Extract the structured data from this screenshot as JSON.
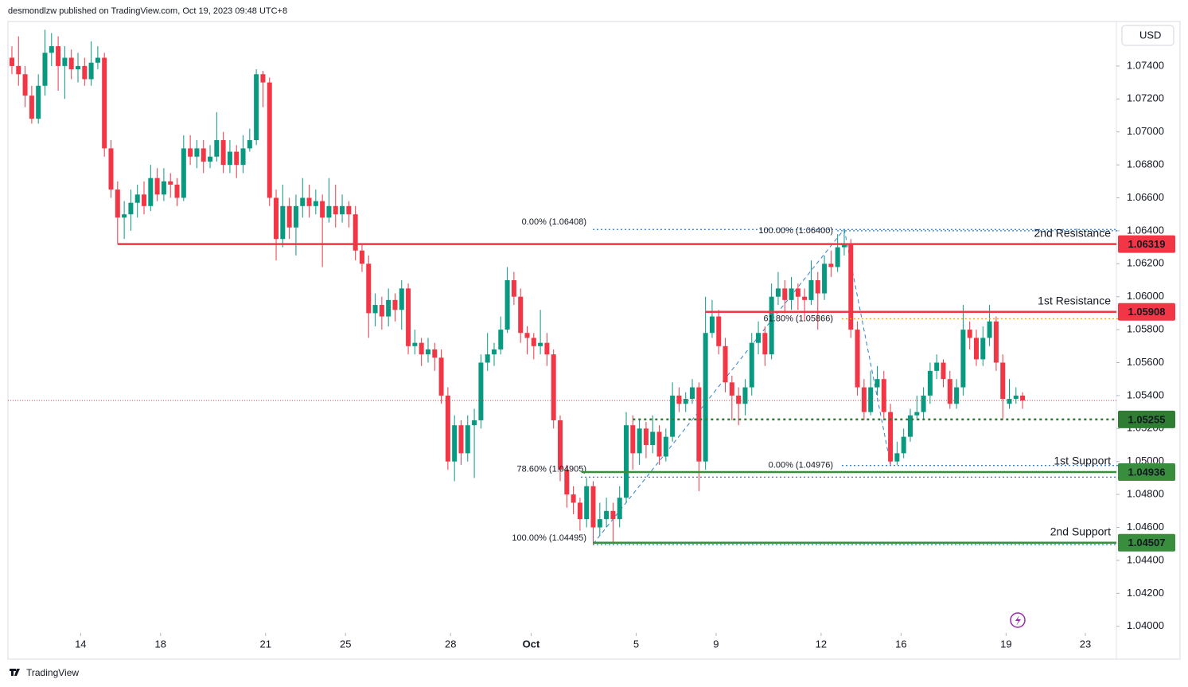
{
  "header": "desmondlzw published on TradingView.com, Oct 19, 2023 09:48 UTC+8",
  "currency_button": "USD",
  "footer": "TradingView",
  "chart_data": {
    "type": "candlestick",
    "up_color": "#089981",
    "down_color": "#f23645",
    "xlim": [
      -0.6,
      167.2
    ],
    "xticks": [
      {
        "value": 10.4,
        "label": "14"
      },
      {
        "value": 22.5,
        "label": "18"
      },
      {
        "value": 38.4,
        "label": "21"
      },
      {
        "value": 50.5,
        "label": "25"
      },
      {
        "value": 66.4,
        "label": "28"
      },
      {
        "value": 78.6,
        "label": "Oct"
      },
      {
        "value": 94.5,
        "label": "5"
      },
      {
        "value": 106.6,
        "label": "9"
      },
      {
        "value": 122.5,
        "label": "12"
      },
      {
        "value": 134.6,
        "label": "16"
      },
      {
        "value": 150.5,
        "label": "19"
      },
      {
        "value": 162.5,
        "label": "23"
      }
    ],
    "ylim": [
      1.0396,
      1.0767
    ],
    "yticks": [
      {
        "value": 1.04,
        "label": "1.04000"
      },
      {
        "value": 1.042,
        "label": "1.04200"
      },
      {
        "value": 1.044,
        "label": "1.04400"
      },
      {
        "value": 1.046,
        "label": "1.04600"
      },
      {
        "value": 1.048,
        "label": "1.04800"
      },
      {
        "value": 1.05,
        "label": "1.05000"
      },
      {
        "value": 1.052,
        "label": "1.05200"
      },
      {
        "value": 1.054,
        "label": "1.05400"
      },
      {
        "value": 1.056,
        "label": "1.05600"
      },
      {
        "value": 1.058,
        "label": "1.05800"
      },
      {
        "value": 1.06,
        "label": "1.06000"
      },
      {
        "value": 1.062,
        "label": "1.06200"
      },
      {
        "value": 1.064,
        "label": "1.06400"
      },
      {
        "value": 1.066,
        "label": "1.06600"
      },
      {
        "value": 1.068,
        "label": "1.06800"
      },
      {
        "value": 1.07,
        "label": "1.07000"
      },
      {
        "value": 1.072,
        "label": "1.07200"
      },
      {
        "value": 1.074,
        "label": "1.07400"
      }
    ],
    "open": [
      1.0745,
      1.074,
      1.0735,
      1.0722,
      1.0708,
      1.0728,
      1.0748,
      1.0752,
      1.074,
      1.0745,
      1.0738,
      1.074,
      1.0732,
      1.0742,
      1.0745,
      1.069,
      1.0665,
      1.0648,
      1.065,
      1.0657,
      1.0662,
      1.0655,
      1.0672,
      1.0662,
      1.067,
      1.0668,
      1.066,
      1.069,
      1.0685,
      1.069,
      1.0682,
      1.0685,
      1.0695,
      1.068,
      1.0688,
      1.068,
      1.069,
      1.0695,
      1.0735,
      1.073,
      1.066,
      1.0635,
      1.0655,
      1.0642,
      1.0655,
      1.066,
      1.0655,
      1.0658,
      1.0648,
      1.0655,
      1.065,
      1.0655,
      1.065,
      1.0628,
      1.062,
      1.059,
      1.0595,
      1.0588,
      1.0598,
      1.0592,
      1.0605,
      1.057,
      1.0572,
      1.0565,
      1.0568,
      1.0563,
      1.054,
      1.05,
      1.0522,
      1.0505,
      1.0522,
      1.0525,
      1.056,
      1.0565,
      1.0568,
      1.058,
      1.061,
      1.06,
      1.0578,
      1.0575,
      1.057,
      1.0572,
      1.0565,
      1.0525,
      1.0495,
      1.048,
      1.0475,
      1.0465,
      1.0485,
      1.046,
      1.0465,
      1.047,
      1.0465,
      1.0478,
      1.0522,
      1.0505,
      1.052,
      1.051,
      1.0518,
      1.0503,
      1.0515,
      1.054,
      1.0535,
      1.0538,
      1.0545,
      1.05,
      1.0578,
      1.0588,
      1.057,
      1.0548,
      1.054,
      1.0535,
      1.0545,
      1.0572,
      1.0578,
      1.0565,
      1.06,
      1.0605,
      1.0598,
      1.0605,
      1.06,
      1.0598,
      1.061,
      1.0602,
      1.062,
      1.0618,
      1.063,
      1.0632,
      1.058,
      1.0545,
      1.053,
      1.0545,
      1.055,
      1.053,
      1.05,
      1.0505,
      1.0515,
      1.0528,
      1.053,
      1.054,
      1.0555,
      1.056,
      1.055,
      1.0535,
      1.0545,
      1.058,
      1.0575,
      1.0562,
      1.0575,
      1.0585,
      1.056,
      1.0535,
      1.0538,
      1.054
    ],
    "high": [
      1.0752,
      1.0758,
      1.074,
      1.0728,
      1.0735,
      1.0762,
      1.076,
      1.0758,
      1.0752,
      1.075,
      1.0748,
      1.0745,
      1.0755,
      1.0752,
      1.0748,
      1.0695,
      1.067,
      1.0658,
      1.0665,
      1.0668,
      1.067,
      1.068,
      1.0678,
      1.0678,
      1.0675,
      1.0672,
      1.0698,
      1.0698,
      1.0695,
      1.0695,
      1.0692,
      1.0712,
      1.07,
      1.0695,
      1.0692,
      1.0698,
      1.0702,
      1.0738,
      1.0737,
      1.0733,
      1.0665,
      1.0668,
      1.066,
      1.0662,
      1.0672,
      1.0668,
      1.0665,
      1.0662,
      1.0672,
      1.0668,
      1.0662,
      1.0658,
      1.0655,
      1.0632,
      1.0625,
      1.0602,
      1.06,
      1.0605,
      1.0602,
      1.061,
      1.0608,
      1.058,
      1.0575,
      1.0575,
      1.0572,
      1.0568,
      1.0545,
      1.0528,
      1.0525,
      1.0528,
      1.0532,
      1.0565,
      1.0578,
      1.0572,
      1.0588,
      1.0618,
      1.0615,
      1.0605,
      1.0582,
      1.0578,
      1.0592,
      1.0578,
      1.0568,
      1.0528,
      1.0498,
      1.0485,
      1.0478,
      1.049,
      1.0488,
      1.0475,
      1.0478,
      1.0475,
      1.0485,
      1.053,
      1.0528,
      1.0525,
      1.0524,
      1.0528,
      1.0522,
      1.052,
      1.0548,
      1.0545,
      1.0542,
      1.055,
      1.0548,
      1.06,
      1.0598,
      1.0592,
      1.0575,
      1.0552,
      1.0545,
      1.055,
      1.0578,
      1.0585,
      1.0582,
      1.0608,
      1.0615,
      1.061,
      1.0612,
      1.0608,
      1.0605,
      1.0622,
      1.0615,
      1.0625,
      1.0628,
      1.0638,
      1.0641,
      1.0635,
      1.0585,
      1.055,
      1.0555,
      1.0558,
      1.0555,
      1.0535,
      1.0512,
      1.052,
      1.0532,
      1.054,
      1.0545,
      1.056,
      1.0565,
      1.0562,
      1.0555,
      1.055,
      1.0595,
      1.0585,
      1.058,
      1.0582,
      1.0595,
      1.0588,
      1.0565,
      1.055,
      1.0545,
      1.0542
    ],
    "low": [
      1.0735,
      1.0728,
      1.0715,
      1.0705,
      1.0705,
      1.0722,
      1.074,
      1.0725,
      1.072,
      1.0732,
      1.073,
      1.0728,
      1.0728,
      1.0738,
      1.0685,
      1.066,
      1.0632,
      1.0635,
      1.064,
      1.0648,
      1.065,
      1.0652,
      1.0658,
      1.0658,
      1.066,
      1.0655,
      1.0658,
      1.068,
      1.0678,
      1.0675,
      1.0678,
      1.0682,
      1.0675,
      1.0675,
      1.0672,
      1.0675,
      1.0688,
      1.0692,
      1.0715,
      1.0655,
      1.0622,
      1.063,
      1.0635,
      1.0625,
      1.0648,
      1.0648,
      1.065,
      1.0618,
      1.0645,
      1.0642,
      1.0645,
      1.0642,
      1.0622,
      1.0615,
      1.0575,
      1.0582,
      1.058,
      1.0582,
      1.0585,
      1.058,
      1.0565,
      1.0565,
      1.0558,
      1.056,
      1.0555,
      1.0535,
      1.0495,
      1.0488,
      1.0498,
      1.05,
      1.049,
      1.052,
      1.0555,
      1.0558,
      1.0565,
      1.0578,
      1.0595,
      1.0572,
      1.0565,
      1.0562,
      1.0565,
      1.0558,
      1.052,
      1.0488,
      1.0472,
      1.0468,
      1.0458,
      1.046,
      1.045,
      1.0455,
      1.046,
      1.045,
      1.046,
      1.0475,
      1.0495,
      1.0498,
      1.0502,
      1.0505,
      1.0498,
      1.05,
      1.0512,
      1.053,
      1.053,
      1.0535,
      1.0482,
      1.0495,
      1.0575,
      1.0565,
      1.0542,
      1.0525,
      1.0522,
      1.0528,
      1.054,
      1.0565,
      1.0558,
      1.0562,
      1.0595,
      1.059,
      1.0592,
      1.0592,
      1.0585,
      1.0595,
      1.058,
      1.0598,
      1.0612,
      1.0615,
      1.0625,
      1.0575,
      1.054,
      1.0525,
      1.0528,
      1.054,
      1.0525,
      1.0498,
      1.0498,
      1.0502,
      1.0512,
      1.0525,
      1.0525,
      1.0535,
      1.055,
      1.0545,
      1.0532,
      1.0532,
      1.054,
      1.0568,
      1.0558,
      1.0558,
      1.057,
      1.0555,
      1.0525,
      1.0532,
      1.0535,
      1.0532
    ],
    "close": [
      1.074,
      1.0735,
      1.0722,
      1.0708,
      1.0728,
      1.0748,
      1.0752,
      1.074,
      1.0745,
      1.0738,
      1.074,
      1.0732,
      1.0742,
      1.0745,
      1.069,
      1.0665,
      1.0648,
      1.065,
      1.0657,
      1.0662,
      1.0655,
      1.0672,
      1.0662,
      1.067,
      1.0668,
      1.066,
      1.069,
      1.0685,
      1.069,
      1.0682,
      1.0685,
      1.0695,
      1.068,
      1.0688,
      1.068,
      1.069,
      1.0695,
      1.0735,
      1.073,
      1.066,
      1.0635,
      1.0655,
      1.0642,
      1.0655,
      1.066,
      1.0655,
      1.0658,
      1.0648,
      1.0655,
      1.065,
      1.0655,
      1.065,
      1.0628,
      1.062,
      1.059,
      1.0595,
      1.0588,
      1.0598,
      1.0592,
      1.0605,
      1.057,
      1.0572,
      1.0565,
      1.0568,
      1.0563,
      1.054,
      1.05,
      1.0522,
      1.0505,
      1.0522,
      1.0525,
      1.056,
      1.0565,
      1.0568,
      1.058,
      1.061,
      1.06,
      1.0578,
      1.0575,
      1.057,
      1.0572,
      1.0565,
      1.0525,
      1.0495,
      1.048,
      1.0475,
      1.0465,
      1.0485,
      1.046,
      1.0465,
      1.047,
      1.0465,
      1.0478,
      1.0522,
      1.0505,
      1.052,
      1.051,
      1.0518,
      1.0503,
      1.0515,
      1.054,
      1.0535,
      1.0538,
      1.0545,
      1.05,
      1.0578,
      1.0588,
      1.057,
      1.0548,
      1.054,
      1.0535,
      1.0545,
      1.0572,
      1.0578,
      1.0565,
      1.06,
      1.0605,
      1.0598,
      1.0605,
      1.06,
      1.0598,
      1.061,
      1.0602,
      1.062,
      1.0618,
      1.063,
      1.0632,
      1.058,
      1.0545,
      1.053,
      1.0545,
      1.055,
      1.053,
      1.05,
      1.0505,
      1.0515,
      1.0528,
      1.053,
      1.054,
      1.0555,
      1.056,
      1.055,
      1.0535,
      1.0545,
      1.058,
      1.0575,
      1.0562,
      1.0575,
      1.0585,
      1.056,
      1.0538,
      1.0538,
      1.054,
      1.0537
    ],
    "levels": [
      {
        "label": "2nd Resistance",
        "value": 1.06319,
        "color": "#f23645",
        "style": "solid"
      },
      {
        "label": "1st Resistance",
        "value": 1.05908,
        "color": "#f23645",
        "style": "solid"
      },
      {
        "value": 1.05255,
        "color": "#2e7d32",
        "style": "dotted"
      },
      {
        "label": "1st Support",
        "value": 1.04936,
        "color": "#388e3c",
        "style": "solid"
      },
      {
        "label": "2nd Support",
        "value": 1.04507,
        "color": "#388e3c",
        "style": "solid"
      }
    ],
    "fibs": [
      {
        "text": "0.00% (1.06408)",
        "value": 1.06408,
        "color": "#2f7fd8"
      },
      {
        "text": "78.60% (1.04905)",
        "value": 1.04905,
        "color": "#2f7fd8"
      },
      {
        "text": "100.00% (1.04495)",
        "value": 1.04495,
        "color": "#2f7fd8"
      },
      {
        "text": "100.00% (1.06400)",
        "value": 1.064,
        "color": "#2f7fd8"
      },
      {
        "text": "61.80% (1.05866)",
        "value": 1.05866,
        "color": "#f5a623"
      },
      {
        "text": "0.00% (1.04976)",
        "value": 1.04976,
        "color": "#2f7fd8"
      }
    ]
  }
}
